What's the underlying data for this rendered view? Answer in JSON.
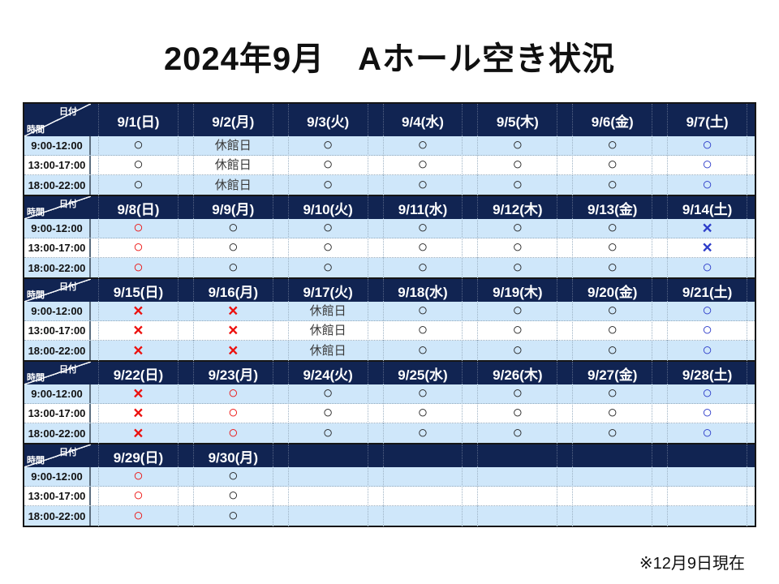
{
  "title": "2024年9月　Aホール空き状況",
  "footnote": "※12月9日現在",
  "corner": {
    "date_label": "日付",
    "time_label": "時間"
  },
  "time_slots": [
    "9:00-12:00",
    "13:00-17:00",
    "18:00-22:00"
  ],
  "legend_colors": {
    "black": "#1f1f1f",
    "red": "#ec100e",
    "blue": "#2c3cc9",
    "header_navy": "#112452",
    "stripe_blue": "#cfe7fa"
  },
  "weeks": [
    {
      "dates": [
        "9/1(日)",
        "9/2(月)",
        "9/3(火)",
        "9/4(水)",
        "9/5(木)",
        "9/6(金)",
        "9/7(土)"
      ],
      "rows": [
        [
          {
            "symbol": "○",
            "color": "black"
          },
          {
            "symbol": "休館日",
            "color": "closed"
          },
          {
            "symbol": "○",
            "color": "black"
          },
          {
            "symbol": "○",
            "color": "black"
          },
          {
            "symbol": "○",
            "color": "black"
          },
          {
            "symbol": "○",
            "color": "black"
          },
          {
            "symbol": "○",
            "color": "blue"
          }
        ],
        [
          {
            "symbol": "○",
            "color": "black"
          },
          {
            "symbol": "休館日",
            "color": "closed"
          },
          {
            "symbol": "○",
            "color": "black"
          },
          {
            "symbol": "○",
            "color": "black"
          },
          {
            "symbol": "○",
            "color": "black"
          },
          {
            "symbol": "○",
            "color": "black"
          },
          {
            "symbol": "○",
            "color": "blue"
          }
        ],
        [
          {
            "symbol": "○",
            "color": "black"
          },
          {
            "symbol": "休館日",
            "color": "closed"
          },
          {
            "symbol": "○",
            "color": "black"
          },
          {
            "symbol": "○",
            "color": "black"
          },
          {
            "symbol": "○",
            "color": "black"
          },
          {
            "symbol": "○",
            "color": "black"
          },
          {
            "symbol": "○",
            "color": "blue"
          }
        ]
      ]
    },
    {
      "dates": [
        "9/8(日)",
        "9/9(月)",
        "9/10(火)",
        "9/11(水)",
        "9/12(木)",
        "9/13(金)",
        "9/14(土)"
      ],
      "rows": [
        [
          {
            "symbol": "○",
            "color": "red"
          },
          {
            "symbol": "○",
            "color": "black"
          },
          {
            "symbol": "○",
            "color": "black"
          },
          {
            "symbol": "○",
            "color": "black"
          },
          {
            "symbol": "○",
            "color": "black"
          },
          {
            "symbol": "○",
            "color": "black"
          },
          {
            "symbol": "×",
            "color": "blue"
          }
        ],
        [
          {
            "symbol": "○",
            "color": "red"
          },
          {
            "symbol": "○",
            "color": "black"
          },
          {
            "symbol": "○",
            "color": "black"
          },
          {
            "symbol": "○",
            "color": "black"
          },
          {
            "symbol": "○",
            "color": "black"
          },
          {
            "symbol": "○",
            "color": "black"
          },
          {
            "symbol": "×",
            "color": "blue"
          }
        ],
        [
          {
            "symbol": "○",
            "color": "red"
          },
          {
            "symbol": "○",
            "color": "black"
          },
          {
            "symbol": "○",
            "color": "black"
          },
          {
            "symbol": "○",
            "color": "black"
          },
          {
            "symbol": "○",
            "color": "black"
          },
          {
            "symbol": "○",
            "color": "black"
          },
          {
            "symbol": "○",
            "color": "blue"
          }
        ]
      ]
    },
    {
      "dates": [
        "9/15(日)",
        "9/16(月)",
        "9/17(火)",
        "9/18(水)",
        "9/19(木)",
        "9/20(金)",
        "9/21(土)"
      ],
      "rows": [
        [
          {
            "symbol": "×",
            "color": "red"
          },
          {
            "symbol": "×",
            "color": "red"
          },
          {
            "symbol": "休館日",
            "color": "closed"
          },
          {
            "symbol": "○",
            "color": "black"
          },
          {
            "symbol": "○",
            "color": "black"
          },
          {
            "symbol": "○",
            "color": "black"
          },
          {
            "symbol": "○",
            "color": "blue"
          }
        ],
        [
          {
            "symbol": "×",
            "color": "red"
          },
          {
            "symbol": "×",
            "color": "red"
          },
          {
            "symbol": "休館日",
            "color": "closed"
          },
          {
            "symbol": "○",
            "color": "black"
          },
          {
            "symbol": "○",
            "color": "black"
          },
          {
            "symbol": "○",
            "color": "black"
          },
          {
            "symbol": "○",
            "color": "blue"
          }
        ],
        [
          {
            "symbol": "×",
            "color": "red"
          },
          {
            "symbol": "×",
            "color": "red"
          },
          {
            "symbol": "休館日",
            "color": "closed"
          },
          {
            "symbol": "○",
            "color": "black"
          },
          {
            "symbol": "○",
            "color": "black"
          },
          {
            "symbol": "○",
            "color": "black"
          },
          {
            "symbol": "○",
            "color": "blue"
          }
        ]
      ]
    },
    {
      "dates": [
        "9/22(日)",
        "9/23(月)",
        "9/24(火)",
        "9/25(水)",
        "9/26(木)",
        "9/27(金)",
        "9/28(土)"
      ],
      "rows": [
        [
          {
            "symbol": "×",
            "color": "red"
          },
          {
            "symbol": "○",
            "color": "red"
          },
          {
            "symbol": "○",
            "color": "black"
          },
          {
            "symbol": "○",
            "color": "black"
          },
          {
            "symbol": "○",
            "color": "black"
          },
          {
            "symbol": "○",
            "color": "black"
          },
          {
            "symbol": "○",
            "color": "blue"
          }
        ],
        [
          {
            "symbol": "×",
            "color": "red"
          },
          {
            "symbol": "○",
            "color": "red"
          },
          {
            "symbol": "○",
            "color": "black"
          },
          {
            "symbol": "○",
            "color": "black"
          },
          {
            "symbol": "○",
            "color": "black"
          },
          {
            "symbol": "○",
            "color": "black"
          },
          {
            "symbol": "○",
            "color": "blue"
          }
        ],
        [
          {
            "symbol": "×",
            "color": "red"
          },
          {
            "symbol": "○",
            "color": "red"
          },
          {
            "symbol": "○",
            "color": "black"
          },
          {
            "symbol": "○",
            "color": "black"
          },
          {
            "symbol": "○",
            "color": "black"
          },
          {
            "symbol": "○",
            "color": "black"
          },
          {
            "symbol": "○",
            "color": "blue"
          }
        ]
      ]
    },
    {
      "dates": [
        "9/29(日)",
        "9/30(月)",
        "",
        "",
        "",
        "",
        ""
      ],
      "rows": [
        [
          {
            "symbol": "○",
            "color": "red"
          },
          {
            "symbol": "○",
            "color": "black"
          },
          {
            "symbol": "",
            "color": "black"
          },
          {
            "symbol": "",
            "color": "black"
          },
          {
            "symbol": "",
            "color": "black"
          },
          {
            "symbol": "",
            "color": "black"
          },
          {
            "symbol": "",
            "color": "black"
          }
        ],
        [
          {
            "symbol": "○",
            "color": "red"
          },
          {
            "symbol": "○",
            "color": "black"
          },
          {
            "symbol": "",
            "color": "black"
          },
          {
            "symbol": "",
            "color": "black"
          },
          {
            "symbol": "",
            "color": "black"
          },
          {
            "symbol": "",
            "color": "black"
          },
          {
            "symbol": "",
            "color": "black"
          }
        ],
        [
          {
            "symbol": "○",
            "color": "red"
          },
          {
            "symbol": "○",
            "color": "black"
          },
          {
            "symbol": "",
            "color": "black"
          },
          {
            "symbol": "",
            "color": "black"
          },
          {
            "symbol": "",
            "color": "black"
          },
          {
            "symbol": "",
            "color": "black"
          },
          {
            "symbol": "",
            "color": "black"
          }
        ]
      ]
    }
  ]
}
